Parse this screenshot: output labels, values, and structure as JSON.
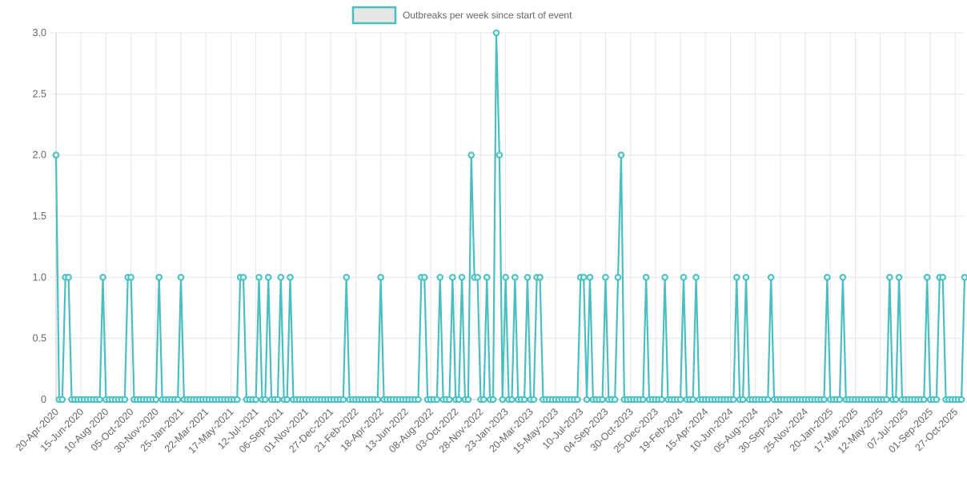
{
  "chart_data": {
    "type": "line",
    "legend": {
      "label": "Outbreaks per week since start of event",
      "placement": "top-center"
    },
    "x_start": "20-Apr-2020",
    "x_tick_labels": [
      "20-Apr-2020",
      "15-Jun-2020",
      "10-Aug-2020",
      "05-Oct-2020",
      "30-Nov-2020",
      "25-Jan-2021",
      "22-Mar-2021",
      "17-May-2021",
      "12-Jul-2021",
      "06-Sep-2021",
      "01-Nov-2021",
      "27-Dec-2021",
      "21-Feb-2022",
      "18-Apr-2022",
      "13-Jun-2022",
      "08-Aug-2022",
      "03-Oct-2022",
      "28-Nov-2022",
      "23-Jan-2023",
      "20-Mar-2023",
      "15-May-2023",
      "10-Jul-2023",
      "04-Sep-2023",
      "30-Oct-2023",
      "25-Dec-2023",
      "19-Feb-2024",
      "15-Apr-2024",
      "10-Jun-2024",
      "05-Aug-2024",
      "30-Sep-2024",
      "25-Nov-2024",
      "20-Jan-2025",
      "17-Mar-2025",
      "12-May-2025",
      "07-Jul-2025",
      "01-Sep-2025",
      "27-Oct-2025"
    ],
    "y_tick_labels": [
      "0",
      "0.5",
      "1.0",
      "1.5",
      "2.0",
      "2.5",
      "3.0"
    ],
    "ylim": [
      0,
      3
    ],
    "grid": true,
    "series": [
      {
        "name": "Outbreaks per week since start of event",
        "color": "#4bbfbf",
        "values": [
          2,
          0,
          0,
          1,
          1,
          0,
          0,
          0,
          0,
          0,
          0,
          0,
          0,
          0,
          0,
          1,
          0,
          0,
          0,
          0,
          0,
          0,
          0,
          1,
          1,
          0,
          0,
          0,
          0,
          0,
          0,
          0,
          0,
          1,
          0,
          0,
          0,
          0,
          0,
          0,
          1,
          0,
          0,
          0,
          0,
          0,
          0,
          0,
          0,
          0,
          0,
          0,
          0,
          0,
          0,
          0,
          0,
          0,
          0,
          1,
          1,
          0,
          0,
          0,
          0,
          1,
          0,
          0,
          1,
          0,
          0,
          0,
          1,
          0,
          0,
          1,
          0,
          0,
          0,
          0,
          0,
          0,
          0,
          0,
          0,
          0,
          0,
          0,
          0,
          0,
          0,
          0,
          0,
          1,
          0,
          0,
          0,
          0,
          0,
          0,
          0,
          0,
          0,
          0,
          1,
          0,
          0,
          0,
          0,
          0,
          0,
          0,
          0,
          0,
          0,
          0,
          0,
          1,
          1,
          0,
          0,
          0,
          0,
          1,
          0,
          0,
          0,
          1,
          0,
          0,
          1,
          0,
          0,
          2,
          1,
          1,
          0,
          0,
          1,
          0,
          0,
          3,
          2,
          0,
          1,
          0,
          0,
          1,
          0,
          0,
          0,
          1,
          0,
          0,
          1,
          1,
          0,
          0,
          0,
          0,
          0,
          0,
          0,
          0,
          0,
          0,
          0,
          0,
          1,
          1,
          0,
          1,
          0,
          0,
          0,
          0,
          1,
          0,
          0,
          0,
          1,
          2,
          0,
          0,
          0,
          0,
          0,
          0,
          0,
          1,
          0,
          0,
          0,
          0,
          0,
          1,
          0,
          0,
          0,
          0,
          0,
          1,
          0,
          0,
          0,
          1,
          0,
          0,
          0,
          0,
          0,
          0,
          0,
          0,
          0,
          0,
          0,
          0,
          1,
          0,
          0,
          1,
          0,
          0,
          0,
          0,
          0,
          0,
          0,
          1,
          0,
          0,
          0,
          0,
          0,
          0,
          0,
          0,
          0,
          0,
          0,
          0,
          0,
          0,
          0,
          0,
          0,
          1,
          0,
          0,
          0,
          0,
          1,
          0,
          0,
          0,
          0,
          0,
          0,
          0,
          0,
          0,
          0,
          0,
          0,
          0,
          0,
          1,
          0,
          0,
          1,
          0,
          0,
          0,
          0,
          0,
          0,
          0,
          0,
          1,
          0,
          0,
          0,
          1,
          1,
          0,
          0,
          0,
          0,
          0,
          0,
          1
        ]
      }
    ]
  }
}
